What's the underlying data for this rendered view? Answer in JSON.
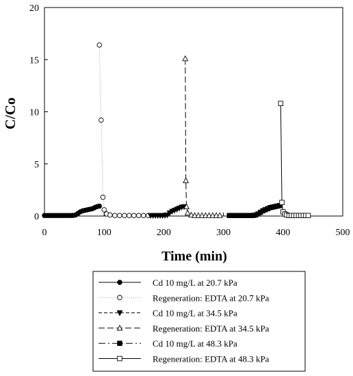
{
  "chart_data": {
    "type": "line",
    "xlabel": "Time (min)",
    "ylabel": "C/Co",
    "xlim": [
      0,
      500
    ],
    "ylim": [
      0,
      20
    ],
    "xticks": [
      0,
      100,
      200,
      300,
      400,
      500
    ],
    "yticks": [
      0,
      5,
      10,
      15,
      20
    ],
    "grid": false,
    "legend_position": "bottom",
    "series": [
      {
        "name": "Cd 10 mg/L at 20.7 kPa",
        "marker": "circle-filled",
        "line": "solid",
        "x": [
          0,
          4,
          8,
          12,
          16,
          20,
          24,
          28,
          32,
          36,
          40,
          44,
          48,
          52,
          56,
          60,
          64,
          68,
          72,
          76,
          80,
          84,
          88,
          92
        ],
        "y": [
          0.05,
          0.05,
          0.05,
          0.05,
          0.05,
          0.05,
          0.05,
          0.05,
          0.05,
          0.05,
          0.05,
          0.05,
          0.06,
          0.1,
          0.25,
          0.4,
          0.5,
          0.55,
          0.6,
          0.65,
          0.7,
          0.8,
          0.9,
          0.95
        ]
      },
      {
        "name": "Regeneration: EDTA  at 20.7 kPa",
        "marker": "circle-open",
        "line": "dotted",
        "x": [
          92,
          95,
          98,
          100,
          104,
          110,
          118,
          126,
          134,
          142,
          150,
          158,
          166,
          174
        ],
        "y": [
          16.4,
          9.2,
          1.8,
          0.6,
          0.2,
          0.1,
          0.05,
          0.05,
          0.05,
          0.05,
          0.05,
          0.05,
          0.05,
          0.05
        ]
      },
      {
        "name": "Cd 10 mg/L at 34.5 kPa",
        "marker": "triangle-down-filled",
        "line": "short-dash",
        "x": [
          178,
          182,
          186,
          190,
          194,
          198,
          202,
          206,
          210,
          214,
          218,
          222,
          226,
          230,
          234
        ],
        "y": [
          0.05,
          0.05,
          0.05,
          0.05,
          0.05,
          0.05,
          0.06,
          0.1,
          0.3,
          0.45,
          0.55,
          0.65,
          0.75,
          0.85,
          0.9
        ]
      },
      {
        "name": "Regeneration: EDTA  at 34.5 kPa",
        "marker": "triangle-up-open",
        "line": "long-dash",
        "x": [
          236,
          237,
          238,
          240,
          246,
          252,
          258,
          264,
          270,
          276,
          282,
          288,
          294
        ],
        "y": [
          15.1,
          3.4,
          0.9,
          0.3,
          0.1,
          0.05,
          0.05,
          0.05,
          0.05,
          0.05,
          0.05,
          0.05,
          0.05
        ]
      },
      {
        "name": "Cd 10 mg/L at 48.3 kPa",
        "marker": "square-filled",
        "line": "long-dash-dot",
        "x": [
          310,
          314,
          318,
          322,
          326,
          330,
          334,
          338,
          342,
          346,
          350,
          354,
          358,
          362,
          366,
          370,
          374,
          378,
          382,
          386,
          390,
          394
        ],
        "y": [
          0.05,
          0.05,
          0.05,
          0.05,
          0.05,
          0.05,
          0.05,
          0.05,
          0.05,
          0.05,
          0.06,
          0.1,
          0.2,
          0.35,
          0.5,
          0.6,
          0.7,
          0.8,
          0.85,
          0.9,
          0.95,
          1.0
        ]
      },
      {
        "name": "Regeneration: EDTA at 48.3 kPa",
        "marker": "square-open",
        "line": "solid",
        "x": [
          396,
          398,
          400,
          403,
          406,
          410,
          414,
          418,
          422,
          426,
          430,
          434,
          438,
          442
        ],
        "y": [
          10.8,
          1.3,
          0.4,
          0.2,
          0.1,
          0.05,
          0.05,
          0.05,
          0.05,
          0.05,
          0.05,
          0.05,
          0.05,
          0.05
        ]
      }
    ]
  }
}
